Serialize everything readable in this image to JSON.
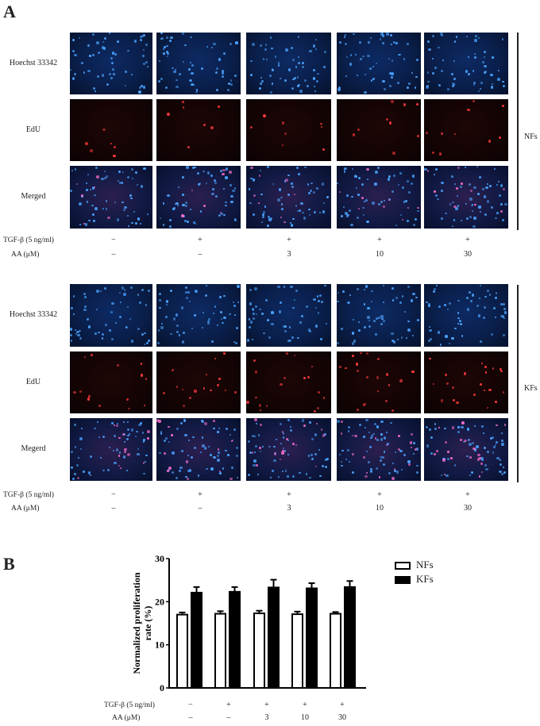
{
  "panel_a": {
    "letter": "A",
    "groups": [
      {
        "name": "NFs",
        "row_labels": [
          "Hoechst 33342",
          "EdU",
          "Merged"
        ]
      },
      {
        "name": "KFs",
        "row_labels": [
          "Hoechst 33342",
          "EdU",
          "Megerd"
        ]
      }
    ],
    "conditions": {
      "tgf_label": "TGF-β (5 ng/ml)",
      "aa_label": "AA  (μM)",
      "tgf_values": [
        "−",
        "+",
        "+",
        "+",
        "+"
      ],
      "aa_values": [
        "–",
        "–",
        "3",
        "10",
        "30"
      ]
    },
    "colors": {
      "hoechst": "#0a1f4b",
      "edu": "#140404",
      "merged": "#121a45",
      "nucleus_blue": "#4aa3ff",
      "nucleus_red": "#ff3a3a",
      "nucleus_pink": "#ff6fd0"
    }
  },
  "panel_b": {
    "letter": "B",
    "legend": [
      {
        "label": "NFs",
        "fill": "#ffffff"
      },
      {
        "label": "KFs",
        "fill": "#000000"
      }
    ],
    "conditions": {
      "tgf_label": "TGF-β (5 ng/ml)",
      "aa_label": "AA  (μM)",
      "tgf_values": [
        "−",
        "+",
        "+",
        "+",
        "+"
      ],
      "aa_values": [
        "–",
        "–",
        "3",
        "10",
        "30"
      ]
    }
  },
  "chart_data": {
    "type": "bar",
    "title": "",
    "xlabel": "",
    "ylabel": "Normalized proliferation rate (%)",
    "ylim": [
      0,
      30
    ],
    "yticks": [
      0,
      10,
      20,
      30
    ],
    "grid": false,
    "legend_position": "top-right",
    "categories": [
      "TGF-β − / AA −",
      "TGF-β + / AA −",
      "TGF-β + / AA 3 μM",
      "TGF-β + / AA 10 μM",
      "TGF-β + / AA 30 μM"
    ],
    "series": [
      {
        "name": "NFs",
        "color": "#ffffff",
        "values": [
          17.0,
          17.2,
          17.3,
          17.1,
          17.2
        ],
        "errors": [
          0.5,
          0.6,
          0.6,
          0.6,
          0.4
        ]
      },
      {
        "name": "KFs",
        "color": "#000000",
        "values": [
          22.1,
          22.3,
          23.3,
          23.1,
          23.4
        ],
        "errors": [
          1.3,
          1.1,
          1.8,
          1.2,
          1.4
        ]
      }
    ]
  }
}
